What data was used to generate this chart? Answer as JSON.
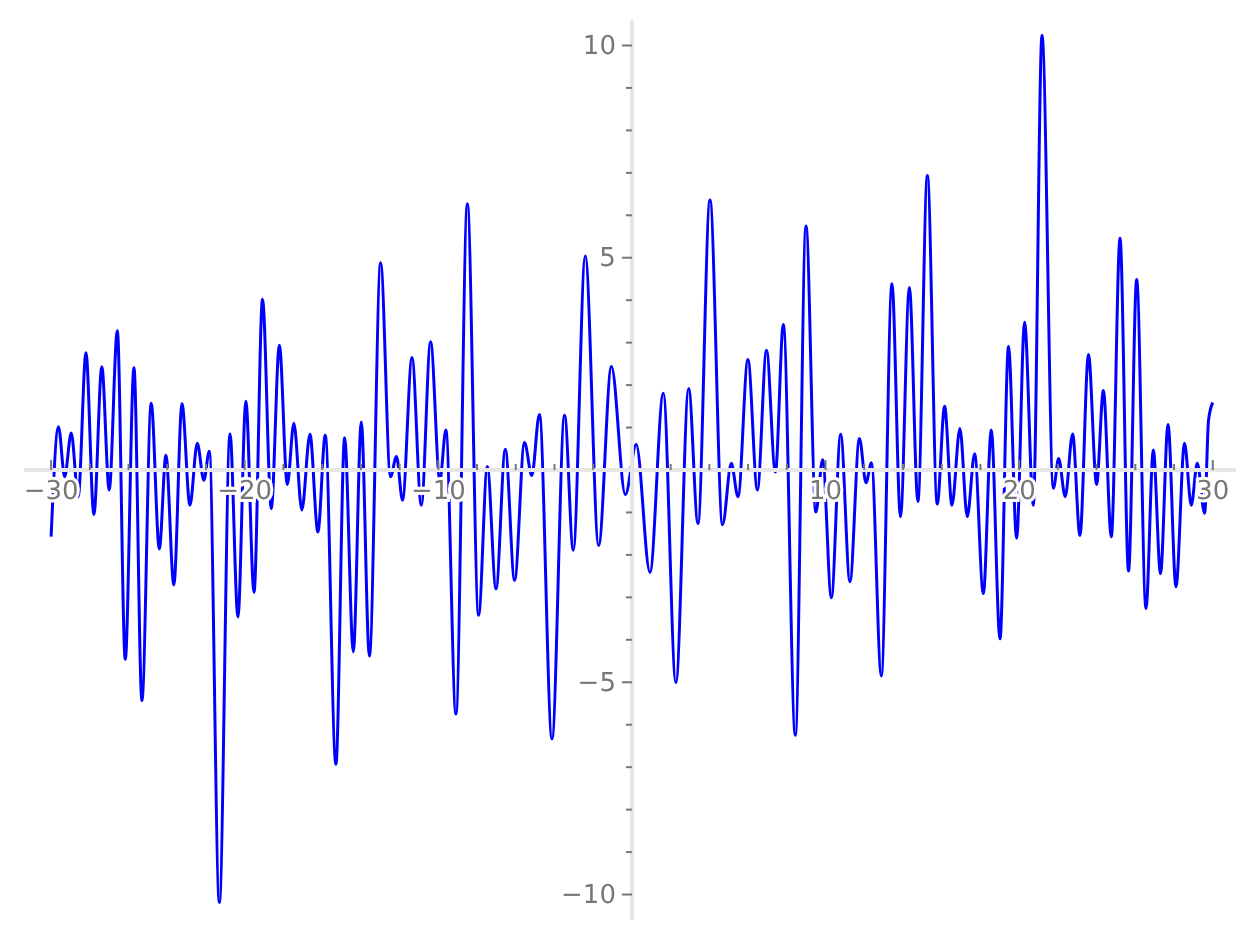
{
  "chart_data": {
    "type": "line",
    "xlim": [
      -31.4,
      31.2
    ],
    "ylim": [
      -10.6,
      10.6
    ],
    "xticks": [
      -30,
      {
        "value": -28,
        "label": null
      },
      {
        "value": -26,
        "label": null
      },
      {
        "value": -24,
        "label": null
      },
      {
        "value": -22,
        "label": null
      },
      -20,
      {
        "value": -18,
        "label": null
      },
      {
        "value": -16,
        "label": null
      },
      {
        "value": -14,
        "label": null
      },
      {
        "value": -12,
        "label": null
      },
      -10,
      {
        "value": -8,
        "label": null
      },
      {
        "value": -6,
        "label": null
      },
      {
        "value": -4,
        "label": null
      },
      {
        "value": -2,
        "label": null
      },
      {
        "value": 2,
        "label": null
      },
      {
        "value": 4,
        "label": null
      },
      {
        "value": 6,
        "label": null
      },
      {
        "value": 8,
        "label": null
      },
      10,
      {
        "value": 12,
        "label": null
      },
      {
        "value": 14,
        "label": null
      },
      {
        "value": 16,
        "label": null
      },
      {
        "value": 18,
        "label": null
      },
      20,
      {
        "value": 22,
        "label": null
      },
      {
        "value": 24,
        "label": null
      },
      {
        "value": 26,
        "label": null
      },
      {
        "value": 28,
        "label": null
      },
      30
    ],
    "yticks": [
      -10,
      {
        "value": -9,
        "label": null
      },
      {
        "value": -8,
        "label": null
      },
      {
        "value": -7,
        "label": null
      },
      {
        "value": -6,
        "label": null
      },
      -5,
      {
        "value": -4,
        "label": null
      },
      {
        "value": -3,
        "label": null
      },
      {
        "value": -2,
        "label": null
      },
      {
        "value": -1,
        "label": null
      },
      {
        "value": 1,
        "label": null
      },
      {
        "value": 2,
        "label": null
      },
      {
        "value": 3,
        "label": null
      },
      {
        "value": 4,
        "label": null
      },
      5,
      {
        "value": 6,
        "label": null
      },
      {
        "value": 7,
        "label": null
      },
      {
        "value": 8,
        "label": null
      },
      {
        "value": 9,
        "label": null
      },
      10
    ],
    "grid": false,
    "marker": "none",
    "line_style": "solid",
    "series": [
      {
        "color": "#0000ff",
        "x": [
          -30,
          -29.62,
          -29.3,
          -28.96,
          -28.6,
          -28.2,
          -27.79,
          -27.38,
          -27.0,
          -26.58,
          -26.17,
          -25.72,
          -25.31,
          -24.83,
          -24.41,
          -24.07,
          -23.66,
          -23.24,
          -22.83,
          -22.45,
          -22.11,
          -21.83,
          -21.31,
          -20.76,
          -20.35,
          -19.94,
          -19.52,
          -19.08,
          -18.63,
          -18.21,
          -17.8,
          -17.46,
          -17.05,
          -16.63,
          -16.22,
          -15.84,
          -15.29,
          -14.84,
          -14.39,
          -13.98,
          -13.56,
          -12.98,
          -12.47,
          -12.16,
          -11.85,
          -11.36,
          -10.88,
          -10.4,
          -9.92,
          -9.61,
          -9.09,
          -8.5,
          -7.92,
          -7.47,
          -7.02,
          -6.54,
          -6.06,
          -5.55,
          -5.17,
          -4.78,
          -4.13,
          -3.48,
          -3.03,
          -2.41,
          -1.72,
          -1.06,
          -0.34,
          0.22,
          0.93,
          1.62,
          2.27,
          2.93,
          3.41,
          4.03,
          4.68,
          5.13,
          5.48,
          5.99,
          6.48,
          6.95,
          7.41,
          7.82,
          8.44,
          8.99,
          9.5,
          9.85,
          10.3,
          10.78,
          11.26,
          11.75,
          12.09,
          12.37,
          12.88,
          13.43,
          13.87,
          14.33,
          14.77,
          15.26,
          15.77,
          16.15,
          16.53,
          16.94,
          17.32,
          17.7,
          18.15,
          18.56,
          19.01,
          19.45,
          19.87,
          20.28,
          20.73,
          21.18,
          21.77,
          22.04,
          22.38,
          22.76,
          23.14,
          23.58,
          24.0,
          24.35,
          24.76,
          25.21,
          25.65,
          26.07,
          26.55,
          26.93,
          27.3,
          27.69,
          28.1,
          28.54,
          28.89,
          29.2,
          29.58,
          29.78,
          30.0
        ],
        "values": [
          -1.57,
          1.02,
          -0.16,
          0.87,
          -0.63,
          2.76,
          -1.05,
          2.43,
          -0.47,
          3.28,
          -4.46,
          2.41,
          -5.43,
          1.57,
          -1.86,
          0.35,
          -2.71,
          1.56,
          -0.83,
          0.63,
          -0.24,
          0.44,
          -10.19,
          0.85,
          -3.46,
          1.62,
          -2.88,
          4.02,
          -0.91,
          2.94,
          -0.34,
          1.1,
          -0.94,
          0.84,
          -1.46,
          0.82,
          -6.93,
          0.76,
          -4.28,
          1.13,
          -4.38,
          4.88,
          -0.16,
          0.32,
          -0.71,
          2.65,
          -0.83,
          3.02,
          -0.24,
          0.94,
          -5.75,
          6.27,
          -3.42,
          0.08,
          -2.8,
          0.49,
          -2.6,
          0.65,
          -0.13,
          1.31,
          -6.33,
          1.29,
          -1.89,
          5.04,
          -1.78,
          2.44,
          -0.58,
          0.6,
          -2.41,
          1.81,
          -5.01,
          1.92,
          -1.26,
          6.36,
          -1.29,
          0.16,
          -0.63,
          2.6,
          -0.47,
          2.82,
          -0.05,
          3.43,
          -6.25,
          5.75,
          -0.99,
          0.24,
          -3.01,
          0.84,
          -2.63,
          0.74,
          -0.3,
          0.17,
          -4.85,
          4.39,
          -1.1,
          4.3,
          -0.74,
          6.94,
          -0.8,
          1.5,
          -0.83,
          0.98,
          -1.1,
          0.38,
          -2.91,
          0.94,
          -3.98,
          2.91,
          -1.61,
          3.48,
          -0.83,
          10.24,
          -0.43,
          0.27,
          -0.63,
          0.85,
          -1.54,
          2.72,
          -0.34,
          1.87,
          -1.57,
          5.46,
          -2.38,
          4.49,
          -3.26,
          0.47,
          -2.44,
          1.07,
          -2.75,
          0.63,
          -0.83,
          0.16,
          -1.02,
          1.17,
          1.59
        ]
      }
    ]
  }
}
